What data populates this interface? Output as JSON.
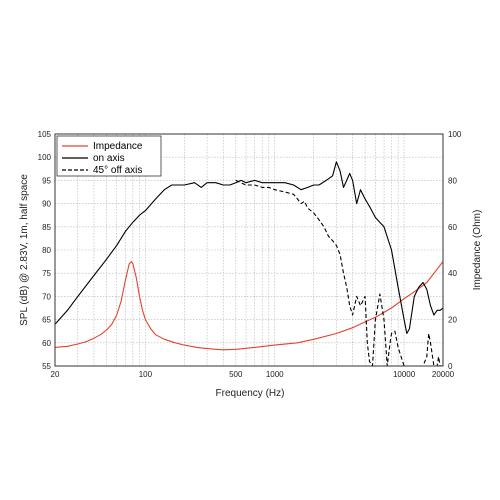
{
  "chart_data": {
    "type": "line",
    "title": "",
    "xlabel": "Frequency (Hz)",
    "ylabel": "SPL (dB) @ 2.83V, 1m, half space",
    "y2label": "Impedance (Ohm)",
    "xscale": "log",
    "xlim": [
      20,
      20000
    ],
    "ylim": [
      55,
      105
    ],
    "y2lim": [
      0,
      100
    ],
    "grid": true,
    "legend": "top-left",
    "x_ticks": [
      {
        "v": 20,
        "label": "20"
      },
      {
        "v": 100,
        "label": "100"
      },
      {
        "v": 500,
        "label": "500"
      },
      {
        "v": 1000,
        "label": "1000"
      },
      {
        "v": 10000,
        "label": "10000"
      },
      {
        "v": 20000,
        "label": "20000"
      }
    ],
    "y_ticks": [
      {
        "v": 55,
        "label": "55"
      },
      {
        "v": 60,
        "label": "60"
      },
      {
        "v": 65,
        "label": "65"
      },
      {
        "v": 70,
        "label": "70"
      },
      {
        "v": 75,
        "label": "75"
      },
      {
        "v": 80,
        "label": "80"
      },
      {
        "v": 85,
        "label": "85"
      },
      {
        "v": 90,
        "label": "90"
      },
      {
        "v": 95,
        "label": "95"
      },
      {
        "v": 100,
        "label": "100"
      },
      {
        "v": 105,
        "label": "105"
      }
    ],
    "y2_ticks": [
      {
        "v": 0,
        "label": "0"
      },
      {
        "v": 20,
        "label": "20"
      },
      {
        "v": 40,
        "label": "40"
      },
      {
        "v": 60,
        "label": "60"
      },
      {
        "v": 80,
        "label": "80"
      },
      {
        "v": 100,
        "label": "100"
      }
    ],
    "series": [
      {
        "name": "Impedance",
        "axis": "right",
        "color": "#e0442c",
        "dash": "solid",
        "points": [
          [
            20,
            8
          ],
          [
            25,
            8.5
          ],
          [
            30,
            9.5
          ],
          [
            35,
            10.5
          ],
          [
            40,
            12
          ],
          [
            45,
            13.5
          ],
          [
            50,
            15.5
          ],
          [
            55,
            18
          ],
          [
            60,
            22
          ],
          [
            65,
            28
          ],
          [
            70,
            37
          ],
          [
            75,
            44
          ],
          [
            78,
            45
          ],
          [
            80,
            44
          ],
          [
            85,
            38
          ],
          [
            90,
            30
          ],
          [
            95,
            24
          ],
          [
            100,
            20
          ],
          [
            110,
            16
          ],
          [
            120,
            13.5
          ],
          [
            140,
            11.5
          ],
          [
            170,
            10
          ],
          [
            200,
            9
          ],
          [
            250,
            8
          ],
          [
            300,
            7.5
          ],
          [
            350,
            7.2
          ],
          [
            400,
            7
          ],
          [
            500,
            7.2
          ],
          [
            700,
            8
          ],
          [
            1000,
            9
          ],
          [
            1500,
            10
          ],
          [
            2000,
            11.5
          ],
          [
            3000,
            14
          ],
          [
            4000,
            16.5
          ],
          [
            5000,
            19
          ],
          [
            6000,
            21
          ],
          [
            8000,
            25
          ],
          [
            10000,
            29
          ],
          [
            12000,
            32
          ],
          [
            15000,
            36
          ],
          [
            20000,
            45
          ]
        ]
      },
      {
        "name": "on axis",
        "axis": "left",
        "color": "#000000",
        "dash": "solid",
        "points": [
          [
            20,
            64
          ],
          [
            25,
            67
          ],
          [
            30,
            70
          ],
          [
            40,
            74.5
          ],
          [
            50,
            78
          ],
          [
            60,
            81
          ],
          [
            70,
            84
          ],
          [
            80,
            86
          ],
          [
            90,
            87.5
          ],
          [
            100,
            88.5
          ],
          [
            120,
            91
          ],
          [
            140,
            93
          ],
          [
            160,
            94
          ],
          [
            200,
            94
          ],
          [
            240,
            94.5
          ],
          [
            270,
            93.5
          ],
          [
            300,
            94.5
          ],
          [
            350,
            94.5
          ],
          [
            400,
            94
          ],
          [
            450,
            94
          ],
          [
            500,
            94.5
          ],
          [
            550,
            95
          ],
          [
            600,
            94.5
          ],
          [
            700,
            95
          ],
          [
            800,
            94.5
          ],
          [
            900,
            94.5
          ],
          [
            1000,
            94.5
          ],
          [
            1200,
            94.5
          ],
          [
            1400,
            94
          ],
          [
            1600,
            93
          ],
          [
            1800,
            93.5
          ],
          [
            2000,
            94
          ],
          [
            2200,
            94
          ],
          [
            2500,
            95
          ],
          [
            2800,
            96
          ],
          [
            3000,
            99
          ],
          [
            3200,
            97
          ],
          [
            3400,
            93.5
          ],
          [
            3600,
            95
          ],
          [
            3800,
            96.5
          ],
          [
            4000,
            95
          ],
          [
            4300,
            90
          ],
          [
            4600,
            93
          ],
          [
            5000,
            91
          ],
          [
            5500,
            89
          ],
          [
            6000,
            87
          ],
          [
            7000,
            85
          ],
          [
            8000,
            80
          ],
          [
            9000,
            72
          ],
          [
            10000,
            65
          ],
          [
            10500,
            62
          ],
          [
            11000,
            63
          ],
          [
            12000,
            70
          ],
          [
            13000,
            72
          ],
          [
            14000,
            73
          ],
          [
            15000,
            71.5
          ],
          [
            16000,
            68
          ],
          [
            17000,
            66
          ],
          [
            18000,
            67
          ],
          [
            19000,
            67
          ],
          [
            20000,
            67.5
          ]
        ]
      },
      {
        "name": "45° off axis",
        "axis": "left",
        "color": "#000000",
        "dash": "dashed",
        "points": [
          [
            500,
            95
          ],
          [
            600,
            94
          ],
          [
            700,
            94
          ],
          [
            800,
            93.5
          ],
          [
            900,
            93.5
          ],
          [
            1000,
            93
          ],
          [
            1200,
            92.5
          ],
          [
            1400,
            92
          ],
          [
            1500,
            91
          ],
          [
            1600,
            90
          ],
          [
            1700,
            90.5
          ],
          [
            1800,
            89
          ],
          [
            2000,
            88
          ],
          [
            2200,
            86.5
          ],
          [
            2400,
            85
          ],
          [
            2600,
            83
          ],
          [
            2800,
            82
          ],
          [
            3000,
            81
          ],
          [
            3200,
            79
          ],
          [
            3400,
            75
          ],
          [
            3600,
            72
          ],
          [
            3800,
            68
          ],
          [
            4000,
            66
          ],
          [
            4300,
            70
          ],
          [
            4600,
            68
          ],
          [
            5000,
            70
          ],
          [
            5200,
            60
          ],
          [
            5400,
            56
          ],
          [
            5700,
            55
          ],
          [
            6000,
            65
          ],
          [
            6500,
            70.5
          ],
          [
            7000,
            65
          ],
          [
            7400,
            55
          ],
          [
            7800,
            60
          ],
          [
            8000,
            62
          ],
          [
            8500,
            62.5
          ],
          [
            9000,
            59
          ],
          [
            10000,
            55
          ],
          [
            14000,
            55
          ],
          [
            15000,
            57
          ],
          [
            15500,
            62
          ],
          [
            16000,
            60
          ],
          [
            17000,
            55
          ],
          [
            18000,
            55
          ],
          [
            18500,
            57
          ],
          [
            19000,
            55
          ],
          [
            20000,
            55
          ]
        ]
      }
    ]
  }
}
